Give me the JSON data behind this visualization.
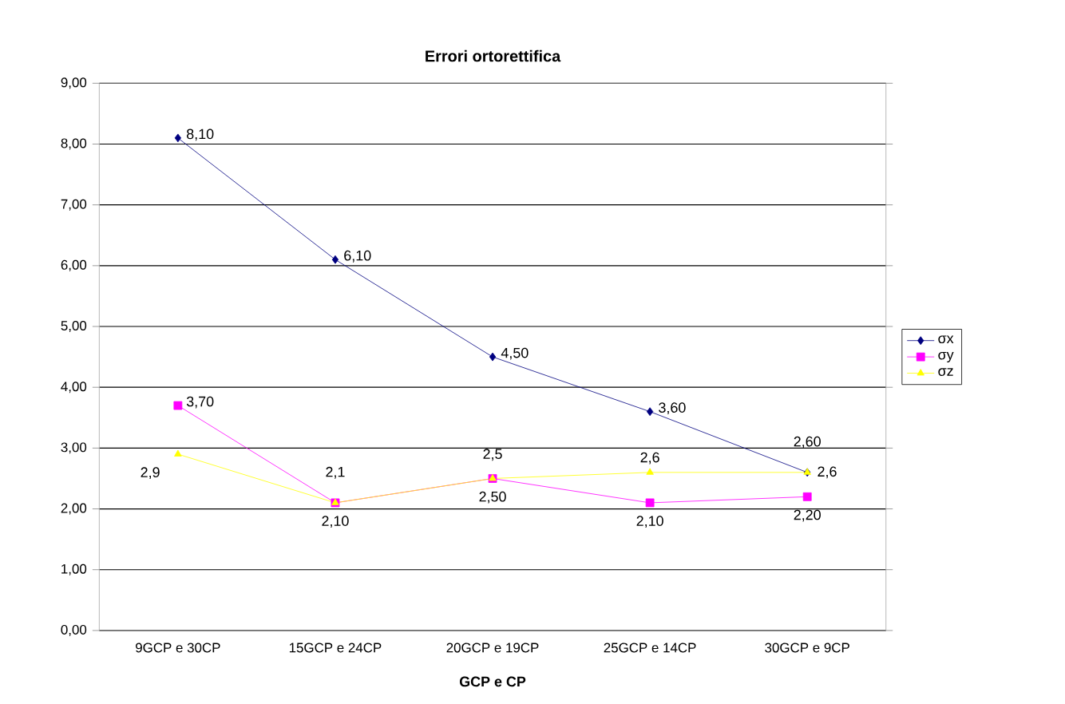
{
  "chart_data": {
    "type": "line",
    "title": "Errori ortorettifica",
    "xlabel": "GCP e CP",
    "categories": [
      "9GCP e 30CP",
      "15GCP e 24CP",
      "20GCP e 19CP",
      "25GCP e 14CP",
      "30GCP e 9CP"
    ],
    "series": [
      {
        "name": "σx",
        "color": "#000080",
        "marker": "diamond",
        "values": [
          8.1,
          6.1,
          4.5,
          3.6,
          2.6
        ],
        "value_labels": [
          "8,10",
          "6,10",
          "4,50",
          "3,60",
          "2,60"
        ]
      },
      {
        "name": "σy",
        "color": "#ff00ff",
        "marker": "square",
        "values": [
          3.7,
          2.1,
          2.5,
          2.1,
          2.2
        ],
        "value_labels": [
          "3,70",
          "2,10",
          "2,50",
          "2,10",
          "2,20"
        ]
      },
      {
        "name": "σz",
        "color": "#ffff00",
        "marker": "triangle",
        "values": [
          2.9,
          2.1,
          2.5,
          2.6,
          2.6
        ],
        "value_labels": [
          "2,9",
          "2,1",
          "2,5",
          "2,6",
          "2,6"
        ]
      }
    ],
    "ylim": [
      0,
      9
    ],
    "yticks": [
      {
        "value": 0,
        "label": "0,00"
      },
      {
        "value": 1,
        "label": "1,00"
      },
      {
        "value": 2,
        "label": "2,00"
      },
      {
        "value": 3,
        "label": "3,00"
      },
      {
        "value": 4,
        "label": "4,00"
      },
      {
        "value": 5,
        "label": "5,00"
      },
      {
        "value": 6,
        "label": "6,00"
      },
      {
        "value": 7,
        "label": "7,00"
      },
      {
        "value": 8,
        "label": "8,00"
      },
      {
        "value": 9,
        "label": "9,00"
      }
    ],
    "grid": "y",
    "legend": "right",
    "line_style": "solid"
  }
}
